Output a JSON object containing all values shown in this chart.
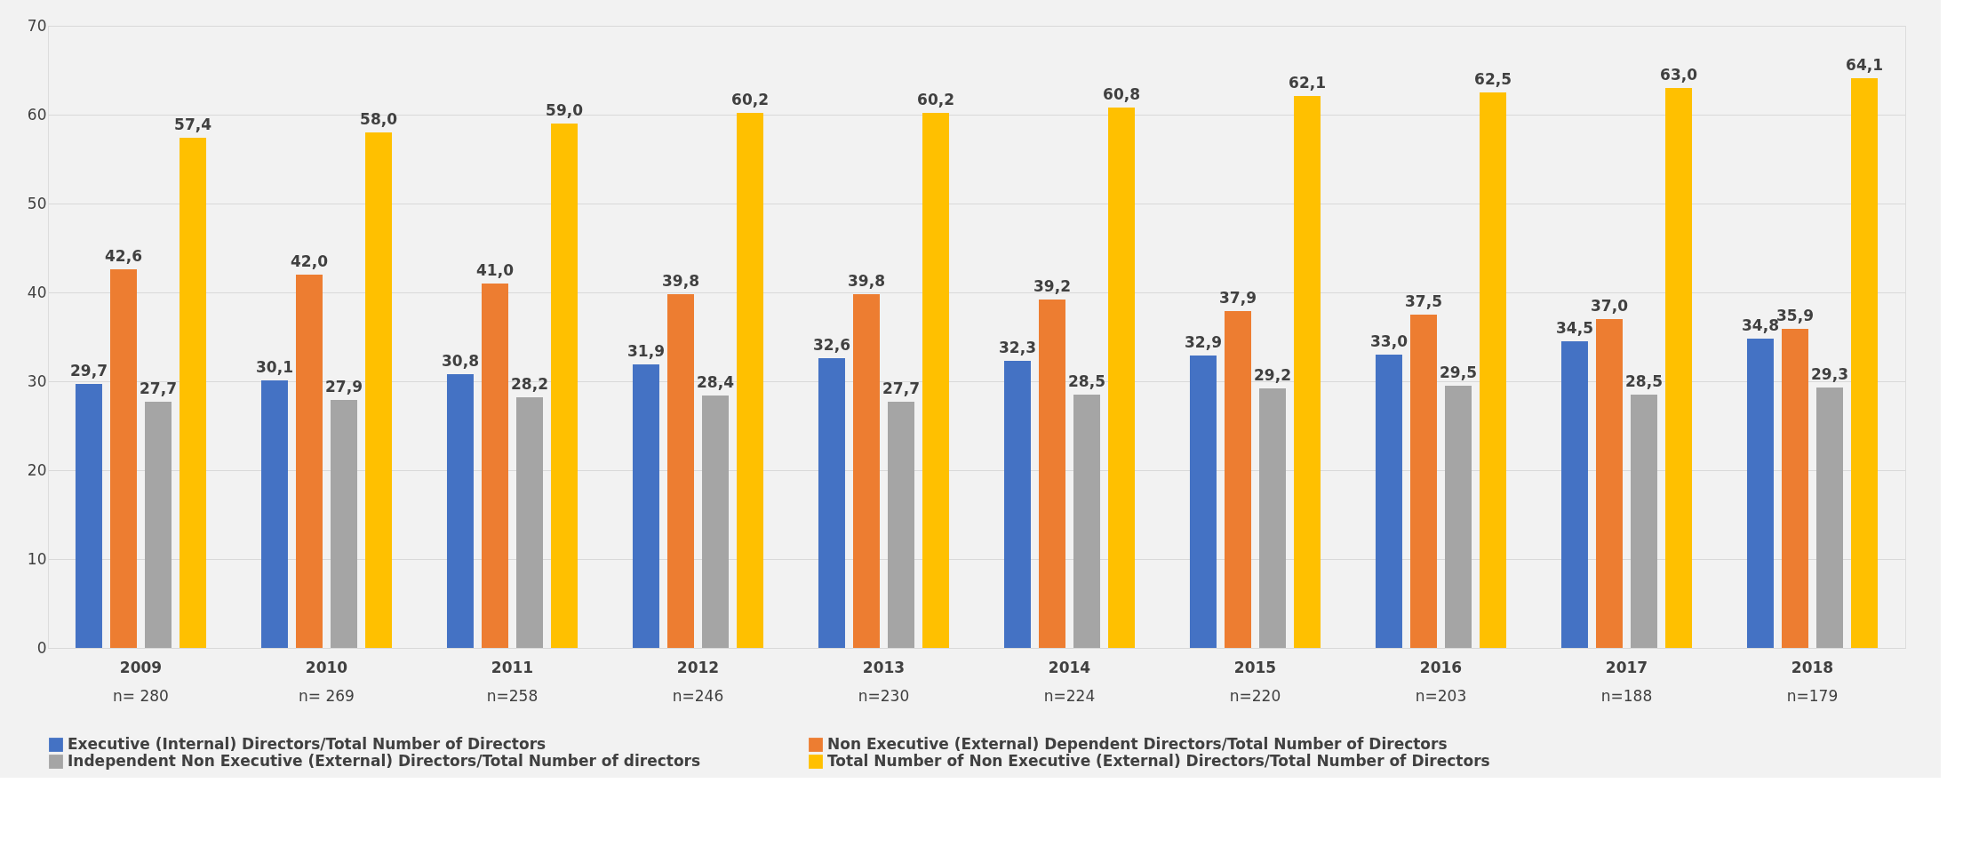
{
  "chart_data": {
    "type": "bar",
    "categories": [
      "2009",
      "2010",
      "2011",
      "2012",
      "2013",
      "2014",
      "2015",
      "2016",
      "2017",
      "2018"
    ],
    "series": [
      {
        "name": "Executive (Internal) Directors/Total Number of Directors",
        "color": "#4472c4",
        "values": [
          29.7,
          30.1,
          30.8,
          31.9,
          32.6,
          32.3,
          32.9,
          33.0,
          34.5,
          34.8
        ],
        "value_labels": [
          "29,7",
          "30,1",
          "30,8",
          "31,9",
          "32,6",
          "32,3",
          "32,9",
          "33,0",
          "34,5",
          "34,8"
        ]
      },
      {
        "name": "Non Executive (External) Dependent Directors/Total Number of Directors",
        "color": "#ed7d31",
        "values": [
          42.6,
          42.0,
          41.0,
          39.8,
          39.8,
          39.2,
          37.9,
          37.5,
          37.0,
          35.9
        ],
        "value_labels": [
          "42,6",
          "42,0",
          "41,0",
          "39,8",
          "39,8",
          "39,2",
          "37,9",
          "37,5",
          "37,0",
          "35,9"
        ]
      },
      {
        "name": "Independent Non Executive (External) Directors/Total Number of directors",
        "color": "#a5a5a5",
        "values": [
          27.7,
          27.9,
          28.2,
          28.4,
          27.7,
          28.5,
          29.2,
          29.5,
          28.5,
          29.3
        ],
        "value_labels": [
          "27,7",
          "27,9",
          "28,2",
          "28,4",
          "27,7",
          "28,5",
          "29,2",
          "29,5",
          "28,5",
          "29,3"
        ]
      },
      {
        "name": "Total Number of Non Executive (External) Directors/Total Number of Directors",
        "color": "#ffc000",
        "values": [
          57.4,
          58.0,
          59.0,
          60.2,
          60.2,
          60.8,
          62.1,
          62.5,
          63.0,
          64.1
        ],
        "value_labels": [
          "57,4",
          "58,0",
          "59,0",
          "60,2",
          "60,2",
          "60,8",
          "62,1",
          "62,5",
          "63,0",
          "64,1"
        ]
      }
    ],
    "ylim": [
      0,
      70
    ],
    "yticks": [
      0,
      10,
      20,
      30,
      40,
      50,
      60,
      70
    ],
    "grid": "y",
    "legend": "bottom",
    "annotations": [
      "n= 280",
      "n= 269",
      "n=258",
      "n=246",
      "n=230",
      "n=224",
      "n=220",
      "n=203",
      "n=188",
      "n=179"
    ]
  }
}
